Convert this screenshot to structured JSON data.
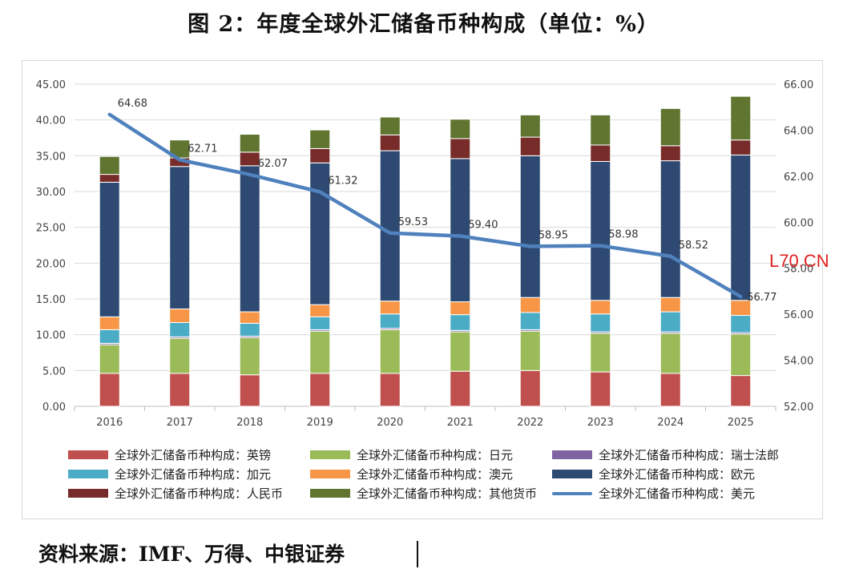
{
  "title": "图 2：年度全球外汇储备币种构成（单位：%）",
  "source": "资料来源：IMF、万得、中银证券",
  "stray_text": "L70.CN",
  "chart_data": {
    "type": "bar",
    "stacked": true,
    "categories": [
      "2016",
      "2017",
      "2018",
      "2019",
      "2020",
      "2021",
      "2022",
      "2023",
      "2024",
      "2025"
    ],
    "left_axis": {
      "ylim": [
        0,
        45
      ],
      "ticks": [
        "0.00",
        "5.00",
        "10.00",
        "15.00",
        "20.00",
        "25.00",
        "30.00",
        "35.00",
        "40.00",
        "45.00"
      ]
    },
    "right_axis": {
      "ylim": [
        52,
        66
      ],
      "ticks": [
        "52.00",
        "54.00",
        "56.00",
        "58.00",
        "60.00",
        "62.00",
        "64.00",
        "66.00"
      ]
    },
    "gridlines": true,
    "legend_position": "bottom",
    "series": [
      {
        "name": "全球外汇储备币种构成：英镑",
        "color": "#c0504d",
        "values": [
          4.6,
          4.6,
          4.4,
          4.6,
          4.6,
          4.9,
          5.0,
          4.8,
          4.6,
          4.3
        ]
      },
      {
        "name": "全球外汇储备币种构成：日元",
        "color": "#9bbb59",
        "values": [
          4.0,
          4.9,
          5.2,
          5.9,
          6.1,
          5.5,
          5.5,
          5.4,
          5.6,
          5.8
        ]
      },
      {
        "name": "全球外汇储备币种构成：瑞士法郎",
        "color": "#8064a2",
        "values": [
          0.2,
          0.2,
          0.2,
          0.2,
          0.2,
          0.2,
          0.2,
          0.2,
          0.2,
          0.2
        ]
      },
      {
        "name": "全球外汇储备币种构成：加元",
        "color": "#4bacc6",
        "values": [
          1.9,
          2.0,
          1.8,
          1.8,
          2.0,
          2.2,
          2.4,
          2.5,
          2.8,
          2.4
        ]
      },
      {
        "name": "全球外汇储备币种构成：澳元",
        "color": "#f79646",
        "values": [
          1.8,
          1.9,
          1.6,
          1.7,
          1.8,
          1.8,
          2.1,
          1.9,
          2.0,
          2.1
        ]
      },
      {
        "name": "全球外汇储备币种构成：欧元",
        "color": "#2e4a73",
        "values": [
          18.8,
          19.9,
          20.4,
          19.8,
          21.0,
          20.0,
          19.8,
          19.4,
          19.1,
          20.3
        ]
      },
      {
        "name": "全球外汇储备币种构成：人民币",
        "color": "#772c2a",
        "values": [
          1.1,
          1.2,
          1.9,
          2.0,
          2.2,
          2.8,
          2.6,
          2.3,
          2.1,
          2.1
        ]
      },
      {
        "name": "全球外汇储备币种构成：其他货币",
        "color": "#5f7530",
        "values": [
          2.5,
          2.5,
          2.5,
          2.6,
          2.5,
          2.7,
          3.1,
          4.2,
          5.2,
          6.1
        ]
      }
    ],
    "line_series": {
      "name": "全球外汇储备币种构成：美元",
      "color": "#4f81bd",
      "axis": "right",
      "values": [
        64.68,
        62.71,
        62.07,
        61.32,
        59.53,
        59.4,
        58.95,
        58.98,
        58.52,
        56.77
      ],
      "labels": [
        "64.68",
        "62.71",
        "62.07",
        "61.32",
        "59.53",
        "59.40",
        "58.95",
        "58.98",
        "58.52",
        "56.77"
      ]
    }
  }
}
